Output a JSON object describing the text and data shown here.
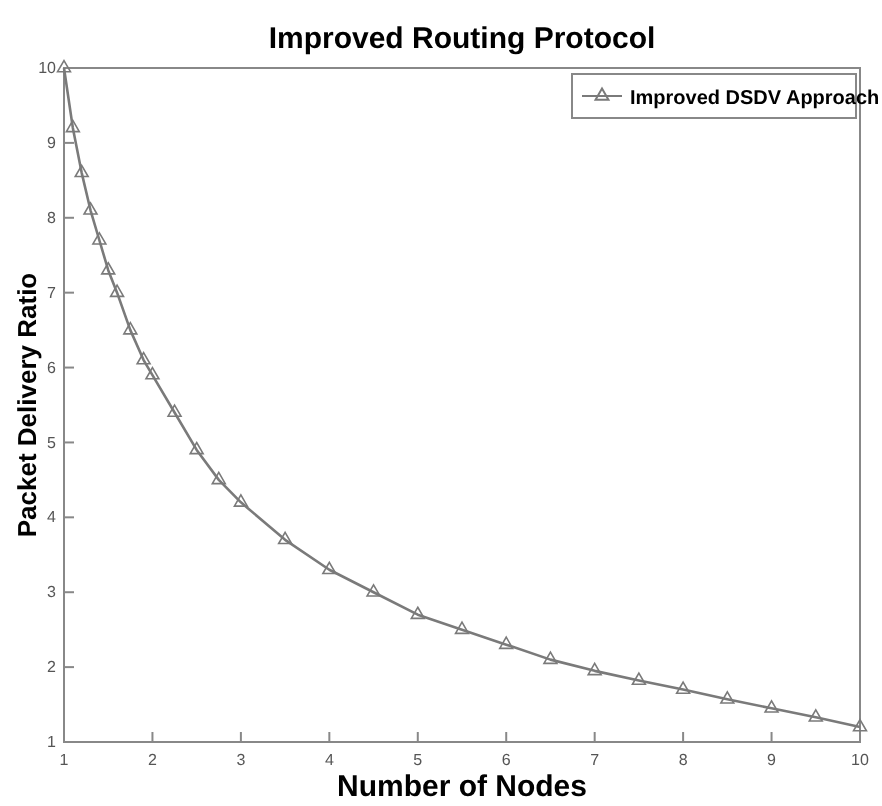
{
  "chart_data": {
    "type": "line",
    "title": "Improved Routing Protocol",
    "xlabel": "Number of Nodes",
    "ylabel": "Packet Delivery Ratio",
    "x": [
      1,
      1.1,
      1.2,
      1.3,
      1.4,
      1.5,
      1.6,
      1.75,
      1.9,
      2,
      2.25,
      2.5,
      2.75,
      3,
      3.5,
      4,
      4.5,
      5,
      5.5,
      6,
      6.5,
      7,
      7.5,
      8,
      8.5,
      9,
      9.5,
      10
    ],
    "series": [
      {
        "name": "Improved DSDV Approach",
        "color": "#7a7a7a",
        "values": [
          10,
          9.2,
          8.6,
          8.1,
          7.7,
          7.3,
          7.0,
          6.5,
          6.1,
          5.9,
          5.4,
          4.9,
          4.5,
          4.2,
          3.7,
          3.3,
          3.0,
          2.7,
          2.5,
          2.3,
          2.1,
          1.95,
          1.82,
          1.7,
          1.57,
          1.45,
          1.33,
          1.2
        ]
      }
    ],
    "xlim": [
      1,
      10
    ],
    "ylim": [
      1,
      10
    ],
    "xticks": [
      1,
      2,
      3,
      4,
      5,
      6,
      7,
      8,
      9,
      10
    ],
    "yticks": [
      1,
      2,
      3,
      4,
      5,
      6,
      7,
      8,
      9,
      10
    ],
    "legend": "top right",
    "marker": "triangle",
    "line_style": "solid",
    "grid": false
  }
}
